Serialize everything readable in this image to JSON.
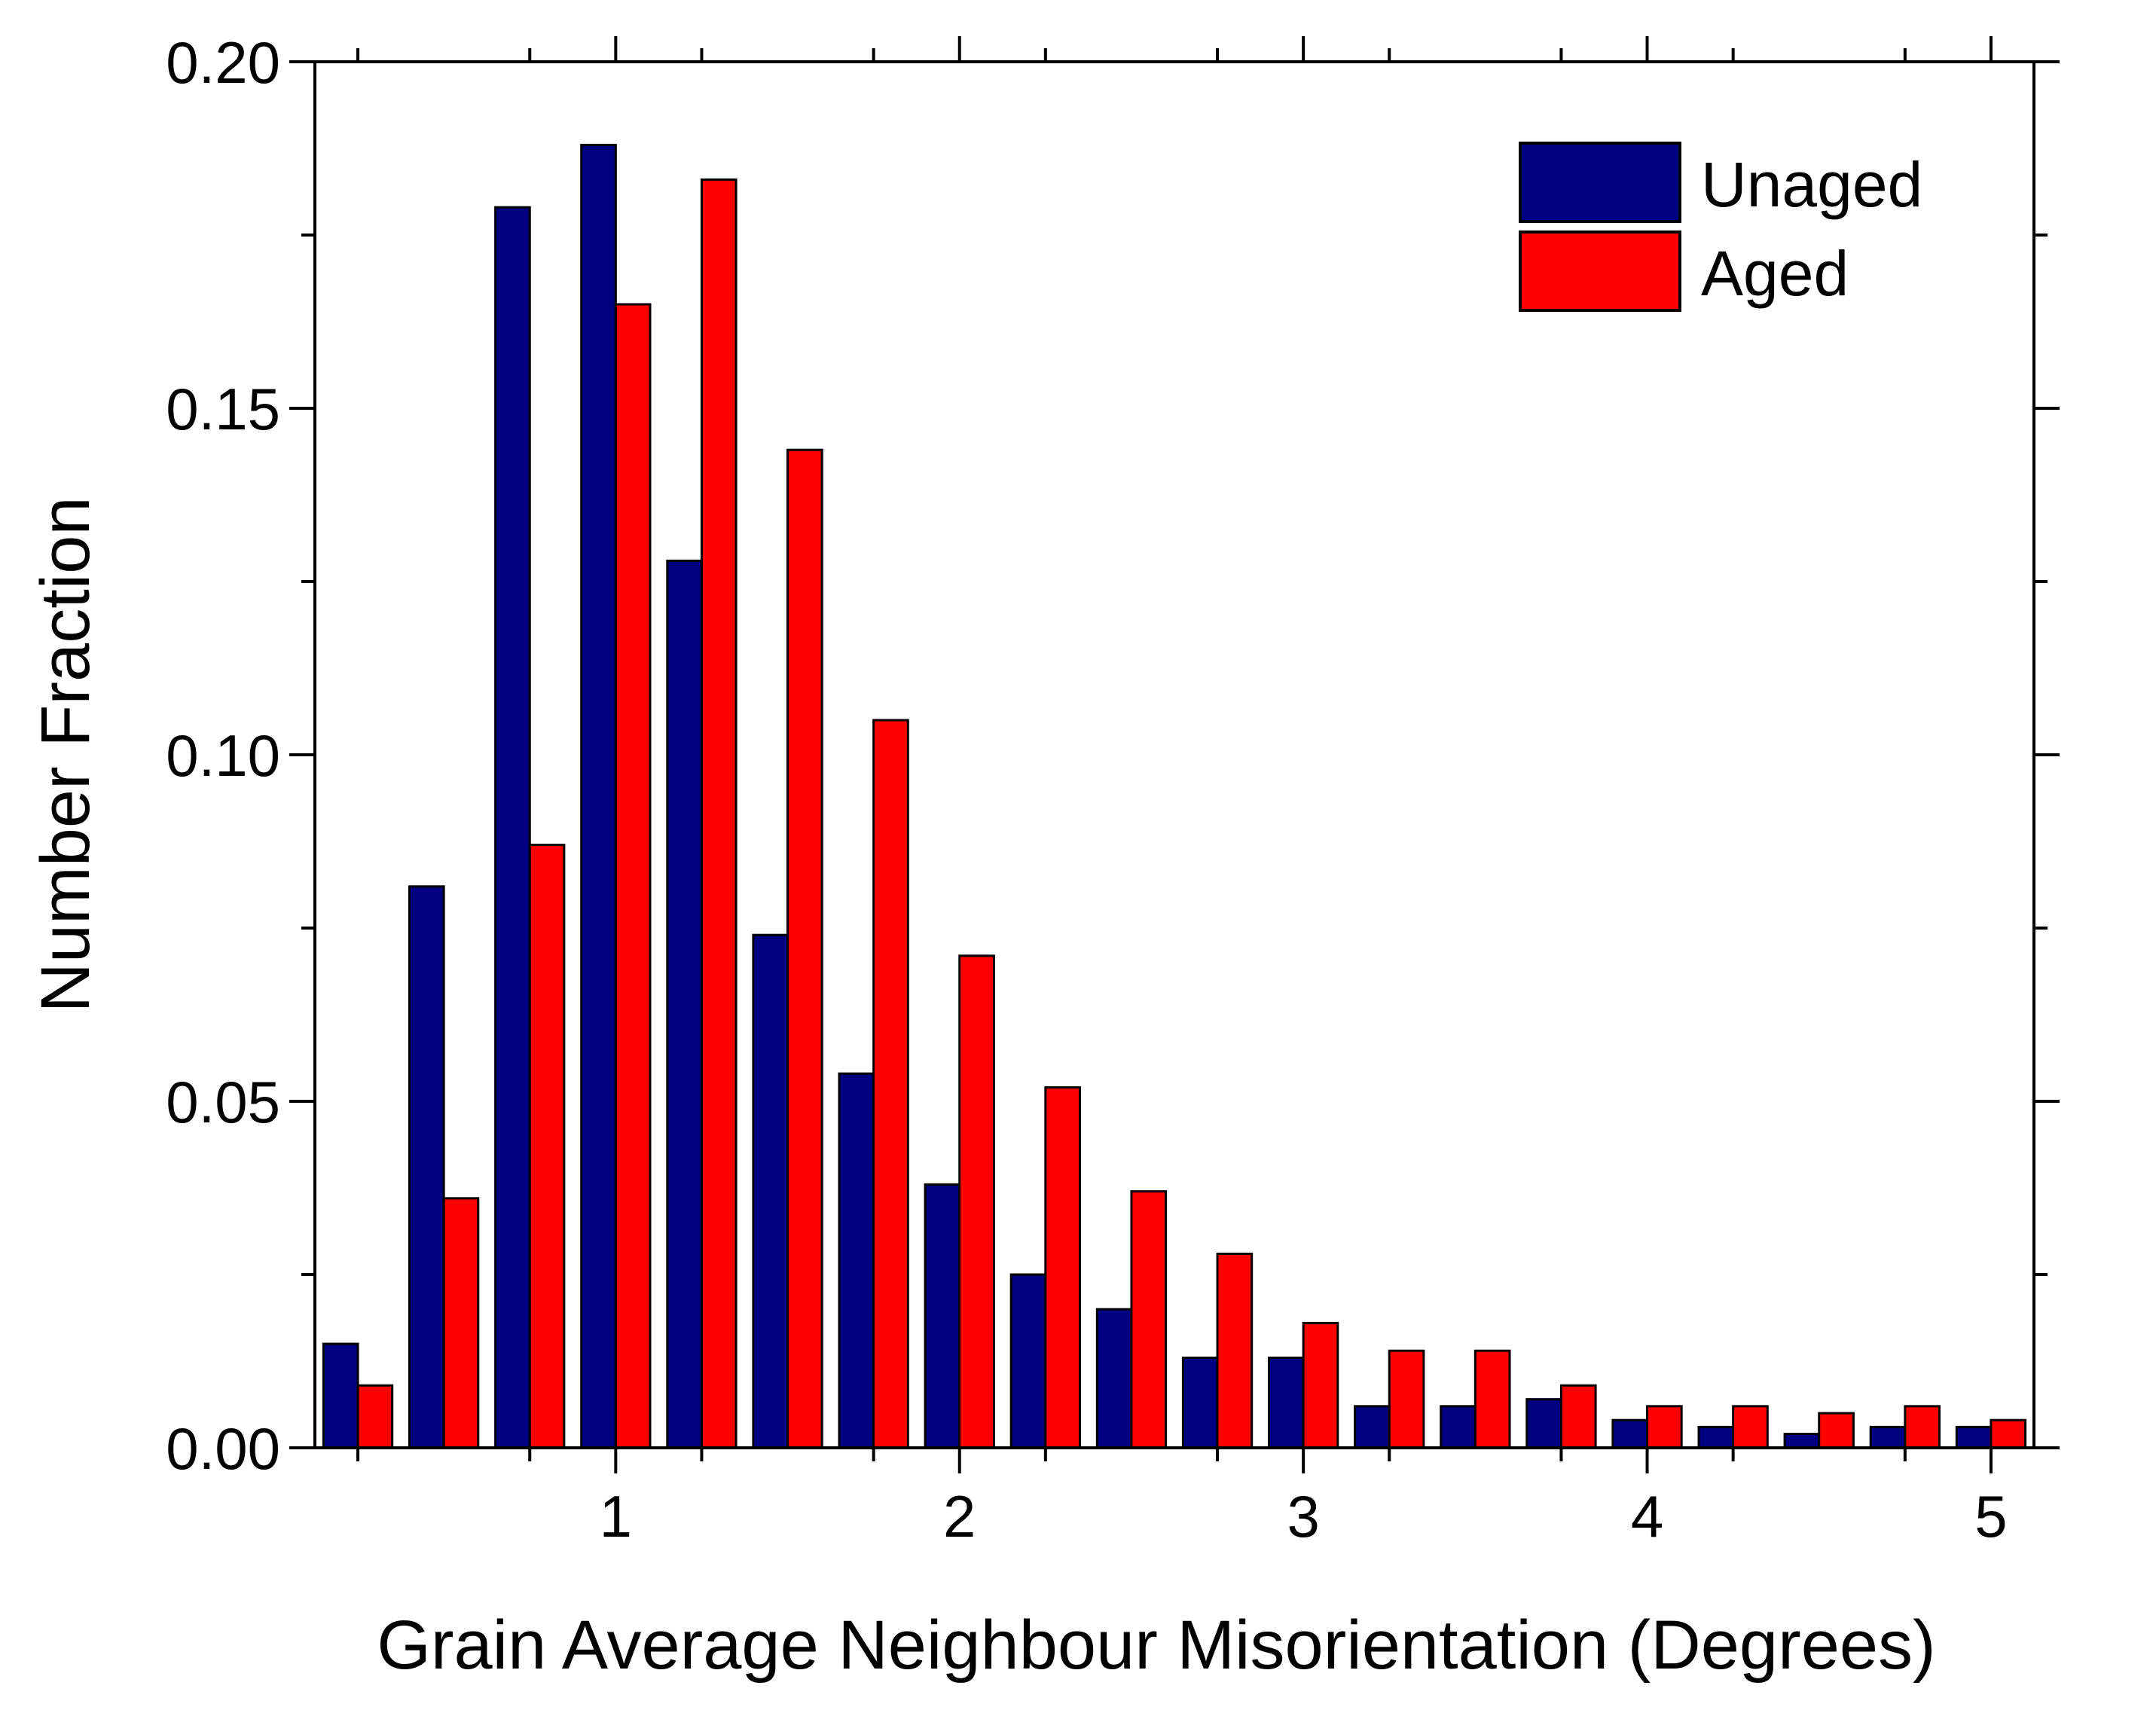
{
  "chart_data": {
    "type": "bar",
    "title": "",
    "xlabel": "Grain Average Neighbour Misorientation (Degrees)",
    "ylabel": "Number Fraction",
    "xlim": [
      0.125,
      5.125
    ],
    "ylim": [
      0,
      0.2
    ],
    "x_ticks": [
      1,
      2,
      3,
      4,
      5
    ],
    "x_tick_labels": [
      "1",
      "2",
      "3",
      "4",
      "5"
    ],
    "y_ticks": [
      0,
      0.05,
      0.1,
      0.15,
      0.2
    ],
    "y_tick_labels": [
      "0.00",
      "0.05",
      "0.10",
      "0.15",
      "0.20"
    ],
    "x": [
      0.25,
      0.5,
      0.75,
      1.0,
      1.25,
      1.5,
      1.75,
      2.0,
      2.25,
      2.5,
      2.75,
      3.0,
      3.25,
      3.5,
      3.75,
      4.0,
      4.25,
      4.5,
      4.75,
      5.0
    ],
    "series": [
      {
        "name": "Unaged",
        "color": "#000080",
        "values": [
          0.015,
          0.081,
          0.179,
          0.188,
          0.128,
          0.074,
          0.054,
          0.038,
          0.025,
          0.02,
          0.013,
          0.013,
          0.006,
          0.006,
          0.007,
          0.004,
          0.003,
          0.002,
          0.003,
          0.003
        ]
      },
      {
        "name": "Aged",
        "color": "#ff0000",
        "values": [
          0.009,
          0.036,
          0.087,
          0.165,
          0.183,
          0.144,
          0.105,
          0.071,
          0.052,
          0.037,
          0.028,
          0.018,
          0.014,
          0.014,
          0.009,
          0.006,
          0.006,
          0.005,
          0.006,
          0.004
        ]
      }
    ],
    "legend": {
      "position": "top-right",
      "entries": [
        "Unaged",
        "Aged"
      ]
    },
    "grid": false
  }
}
